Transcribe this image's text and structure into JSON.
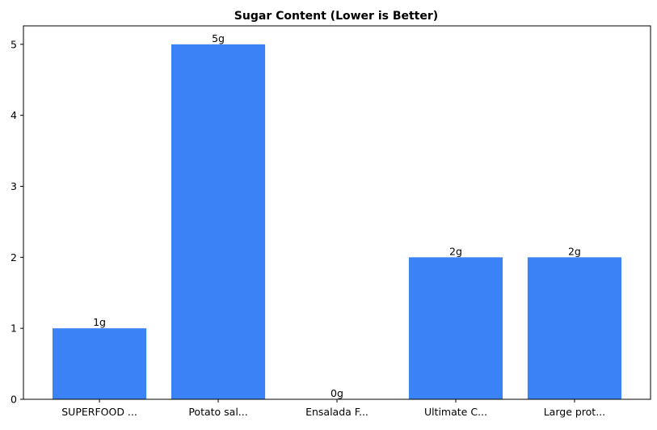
{
  "chart_data": {
    "type": "bar",
    "title": "Sugar Content (Lower is Better)",
    "xlabel": "",
    "ylabel": "",
    "categories": [
      "SUPERFOOD ...",
      "Potato sal...",
      "Ensalada F...",
      "Ultimate C...",
      "Large prot..."
    ],
    "values": [
      1,
      5,
      0,
      2,
      2
    ],
    "data_labels": [
      "1g",
      "5g",
      "0g",
      "2g",
      "2g"
    ],
    "ylim": [
      0,
      5.26
    ],
    "yticks": [
      0,
      1,
      2,
      3,
      4,
      5
    ],
    "grid": false,
    "bar_color": "#3b82f6"
  }
}
